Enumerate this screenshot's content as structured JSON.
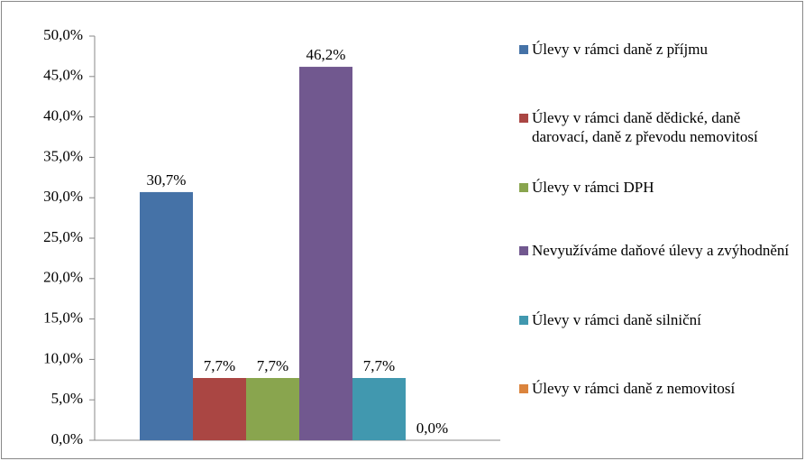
{
  "chart_data": {
    "type": "bar",
    "series": [
      {
        "name": "Úlevy v rámci daně z příjmu",
        "color": "#4572a7",
        "values": [
          30.7
        ],
        "value_labels": [
          "30,7%"
        ]
      },
      {
        "name": "Úlevy v rámci daně dědické,  daně darovací, daně z převodu nemovitosí",
        "color": "#aa4643",
        "values": [
          7.7
        ],
        "value_labels": [
          "7,7%"
        ]
      },
      {
        "name": "Úlevy v rámci DPH",
        "color": "#89a54e",
        "values": [
          7.7
        ],
        "value_labels": [
          "7,7%"
        ]
      },
      {
        "name": "Nevyužíváme daňové úlevy a zvýhodnění",
        "color": "#71588f",
        "values": [
          46.2
        ],
        "value_labels": [
          "46,2%"
        ]
      },
      {
        "name": "Úlevy v rámci daně silniční",
        "color": "#4198af",
        "values": [
          7.7
        ],
        "value_labels": [
          "7,7%"
        ]
      },
      {
        "name": "Úlevy v rámci daně z nemovitosí",
        "color": "#db843d",
        "values": [
          0.0
        ],
        "value_labels": [
          "0,0%"
        ]
      }
    ],
    "ylim": [
      0,
      50
    ],
    "yticks": [
      {
        "value": 0,
        "label": "0,0%"
      },
      {
        "value": 5,
        "label": "5,0%"
      },
      {
        "value": 10,
        "label": "10,0%"
      },
      {
        "value": 15,
        "label": "15,0%"
      },
      {
        "value": 20,
        "label": "20,0%"
      },
      {
        "value": 25,
        "label": "25,0%"
      },
      {
        "value": 30,
        "label": "30,0%"
      },
      {
        "value": 35,
        "label": "35,0%"
      },
      {
        "value": 40,
        "label": "40,0%"
      },
      {
        "value": 45,
        "label": "45,0%"
      },
      {
        "value": 50,
        "label": "50,0%"
      }
    ],
    "grid": false,
    "legend": "right"
  }
}
